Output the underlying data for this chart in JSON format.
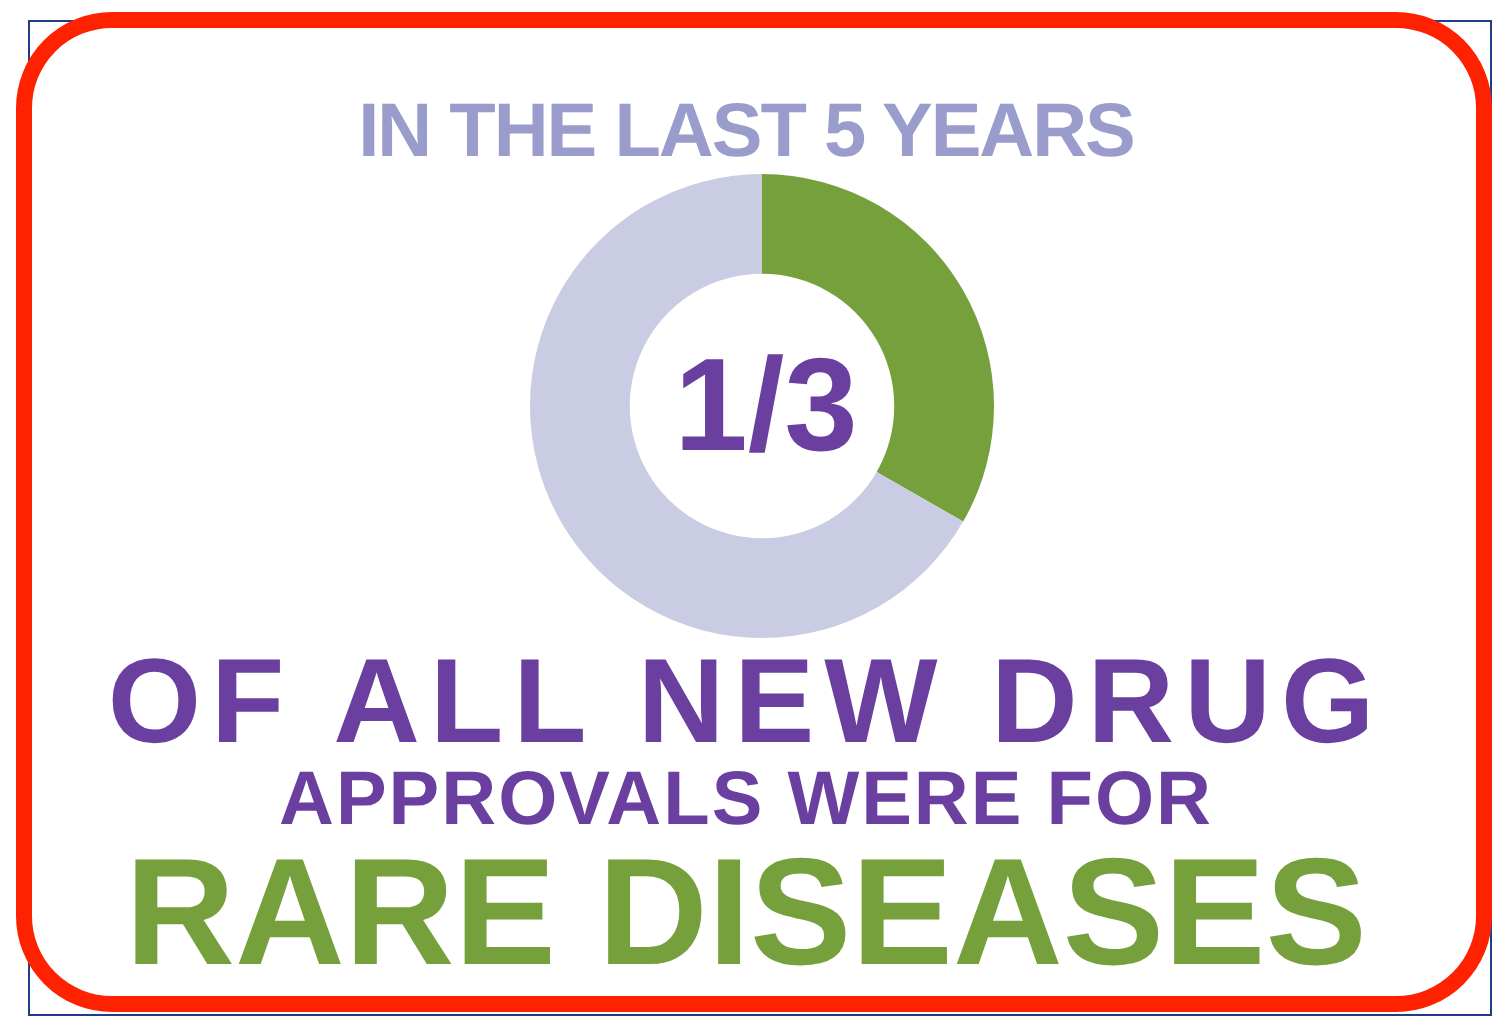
{
  "chart_data": {
    "type": "donut",
    "title": "IN THE LAST 5 YEARS",
    "categories": [
      null,
      null
    ],
    "values": [
      33.3,
      66.7
    ],
    "colors": [
      "#76a03c",
      "#c9cce3"
    ],
    "legend": false,
    "annotations": [
      "1/3",
      "OF ALL NEW DRUG",
      "APPROVALS WERE FOR",
      "RARE DISEASES"
    ]
  }
}
